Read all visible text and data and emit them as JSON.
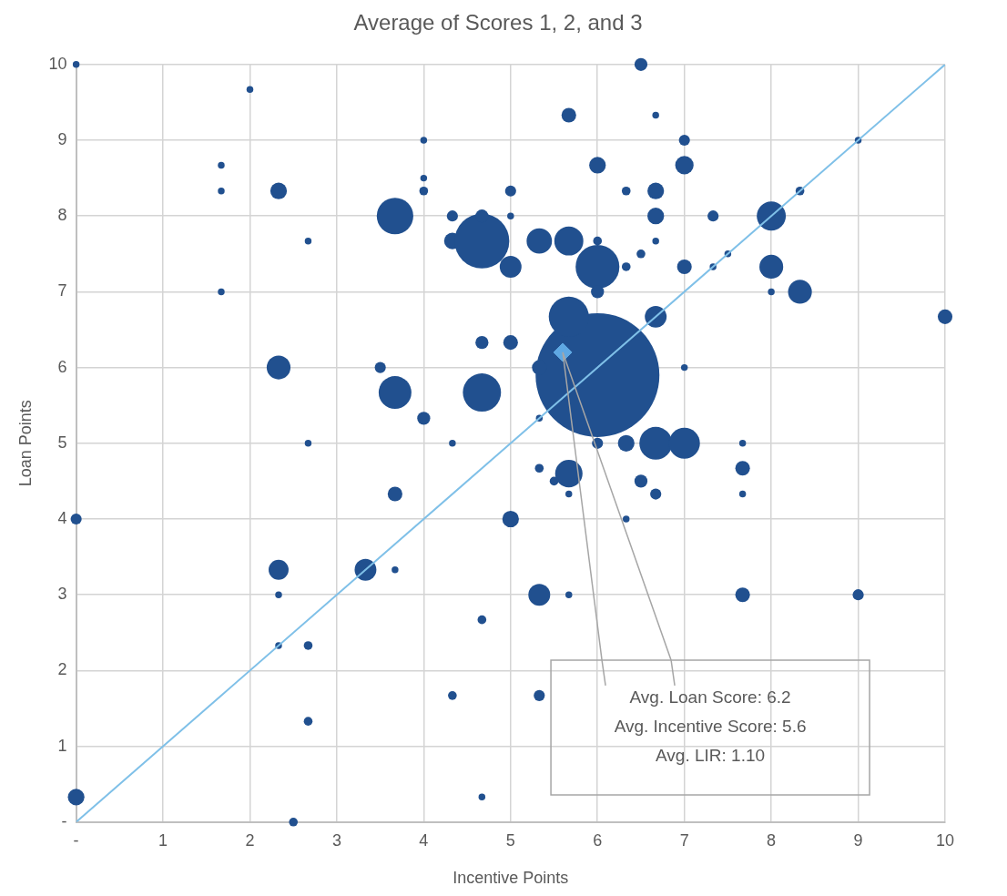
{
  "chart_data": {
    "type": "bubble",
    "title": "Average of Scores 1, 2, and 3",
    "xlabel": "Incentive Points",
    "ylabel": "Loan Points",
    "xlim": [
      0,
      10
    ],
    "ylim": [
      0,
      10
    ],
    "xticks": [
      {
        "value": 0,
        "label": "-"
      },
      1,
      2,
      3,
      4,
      5,
      6,
      7,
      8,
      9,
      10
    ],
    "yticks": [
      {
        "value": 0,
        "label": "-"
      },
      1,
      2,
      3,
      4,
      5,
      6,
      7,
      8,
      9,
      10
    ],
    "grid": true,
    "legend": false,
    "series": [
      {
        "color": "#21508f",
        "marker": "circle",
        "x": [
          6,
          0,
          2,
          1.67,
          1.67,
          2.33,
          3.67,
          2.67,
          1.67,
          2.33,
          3.67,
          3.5,
          4,
          4,
          4,
          4,
          4.33,
          4.33,
          4.67,
          4.67,
          5,
          5,
          5,
          4.67,
          4.67,
          5,
          2.67,
          4.33,
          3.67,
          2.33,
          2.33,
          2.33,
          3.33,
          3.67,
          2.67,
          2.67,
          0,
          0,
          2.5,
          4.67,
          4.33,
          4.67,
          5,
          5.33,
          5.33,
          5.33,
          5.67,
          5.5,
          5.67,
          5.67,
          5.33,
          5.67,
          6,
          5.67,
          6.5,
          6,
          6.67,
          6.33,
          6.67,
          7,
          7,
          6.67,
          6.67,
          6.5,
          7.33,
          7,
          7.33,
          7.5,
          8,
          8.33,
          9,
          8,
          8,
          8.33,
          10,
          6.67,
          5.67,
          6.33,
          6,
          6,
          5.33,
          6.33,
          6.67,
          7,
          6.67,
          6.5,
          7,
          7.67,
          7.67,
          7.67,
          7.67,
          9,
          6,
          6.33,
          5.33
        ],
        "values": [
          5.9,
          10,
          9.67,
          8.67,
          8.33,
          8.33,
          8,
          7.67,
          7,
          6,
          5.67,
          6,
          5.33,
          9,
          8.5,
          8.33,
          8,
          7.67,
          7.67,
          8,
          7.33,
          8.33,
          8,
          5.67,
          6.33,
          6.33,
          5,
          5,
          4.33,
          3.33,
          3,
          2.33,
          3.33,
          3.33,
          2.33,
          1.33,
          4,
          0.33,
          0,
          2.67,
          1.67,
          0.33,
          4,
          3,
          1.67,
          4.67,
          4.6,
          4.5,
          4.33,
          3,
          7.67,
          7.67,
          7.33,
          9.33,
          10,
          8.67,
          9.33,
          8.33,
          8.33,
          9,
          8.67,
          8,
          7.67,
          7.5,
          8,
          7.33,
          7.33,
          7.5,
          8,
          8.33,
          9,
          7.33,
          7,
          7,
          6.67,
          6.67,
          6.67,
          7.33,
          7,
          7.67,
          6,
          5,
          5,
          5,
          4.33,
          4.5,
          6,
          5,
          4.67,
          4.33,
          3,
          3,
          5,
          4,
          5.33
        ],
        "sizes": [
          1,
          0.003,
          0.003,
          0.003,
          0.003,
          0.018,
          0.087,
          0.003,
          0.003,
          0.037,
          0.07,
          0.008,
          0.011,
          0.003,
          0.003,
          0.005,
          0.008,
          0.018,
          0.195,
          0.011,
          0.031,
          0.008,
          0.003,
          0.095,
          0.011,
          0.014,
          0.003,
          0.003,
          0.014,
          0.026,
          0.003,
          0.003,
          0.031,
          0.003,
          0.005,
          0.005,
          0.008,
          0.018,
          0.005,
          0.005,
          0.005,
          0.003,
          0.018,
          0.031,
          0.008,
          0.005,
          0.049,
          0.005,
          0.003,
          0.003,
          0.042,
          0.055,
          0.125,
          0.014,
          0.011,
          0.018,
          0.003,
          0.005,
          0.018,
          0.008,
          0.022,
          0.018,
          0.003,
          0.005,
          0.008,
          0.014,
          0.003,
          0.003,
          0.055,
          0.005,
          0.003,
          0.037,
          0.003,
          0.037,
          0.014,
          0.031,
          0.105,
          0.005,
          0.011,
          0.005,
          0.014,
          0.018,
          0.07,
          0.063,
          0.008,
          0.011,
          0.003,
          0.003,
          0.014,
          0.003,
          0.014,
          0.008,
          0.008,
          0.003,
          0.003
        ]
      },
      {
        "type": "line",
        "color": "#7fc0e8",
        "marker": "none",
        "line_style": "solid",
        "x": [
          0,
          10
        ],
        "values": [
          0,
          10
        ]
      },
      {
        "type": "scatter",
        "color": "#5fa8e3",
        "marker": "diamond",
        "x": [
          5.6
        ],
        "values": [
          6.2
        ]
      }
    ],
    "annotations": [
      {
        "text": "Avg. Loan Score: 6.2\nAvg. Incentive Score: 5.6\nAvg. LIR: 1.10",
        "x": 5.6,
        "y": 6.2
      }
    ]
  }
}
